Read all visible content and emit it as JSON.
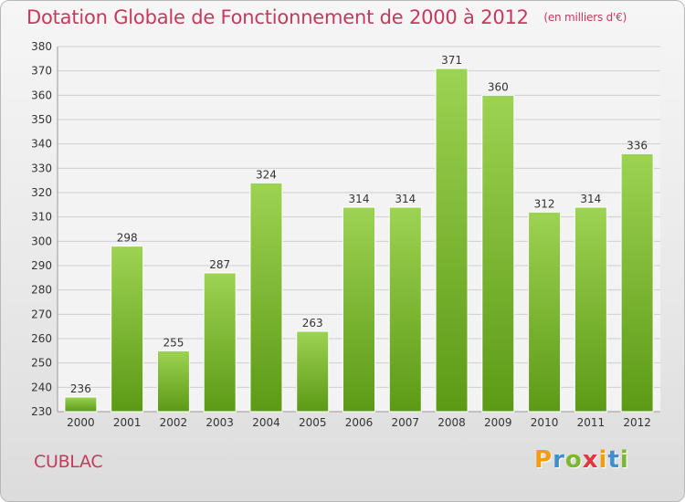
{
  "header": {
    "title": "Dotation Globale de Fonctionnement de 2000 à 2012",
    "unit": "(en milliers d'€)"
  },
  "footer": {
    "commune": "CUBLAC",
    "logo_text": "Proxiti"
  },
  "colors": {
    "title": "#c8385d",
    "bar_light": "#9dd352",
    "bar_dark": "#5c9a16",
    "grid": "#cfcfcf",
    "logo_letters": [
      "#f39c12",
      "#3e8ed0",
      "#7cb82f",
      "#e2373f",
      "#f39c12",
      "#3e8ed0",
      "#7cb82f"
    ]
  },
  "chart_data": {
    "type": "bar",
    "categories": [
      "2000",
      "2001",
      "2002",
      "2003",
      "2004",
      "2005",
      "2006",
      "2007",
      "2008",
      "2009",
      "2010",
      "2011",
      "2012"
    ],
    "values": [
      236,
      298,
      255,
      287,
      324,
      263,
      314,
      314,
      371,
      360,
      312,
      314,
      336
    ],
    "title": "Dotation Globale de Fonctionnement de 2000 à 2012",
    "ylim": [
      230,
      380
    ],
    "yticks": [
      230,
      240,
      250,
      260,
      270,
      280,
      290,
      300,
      310,
      320,
      330,
      340,
      350,
      360,
      370,
      380
    ],
    "grid": true,
    "data_labels": true
  }
}
